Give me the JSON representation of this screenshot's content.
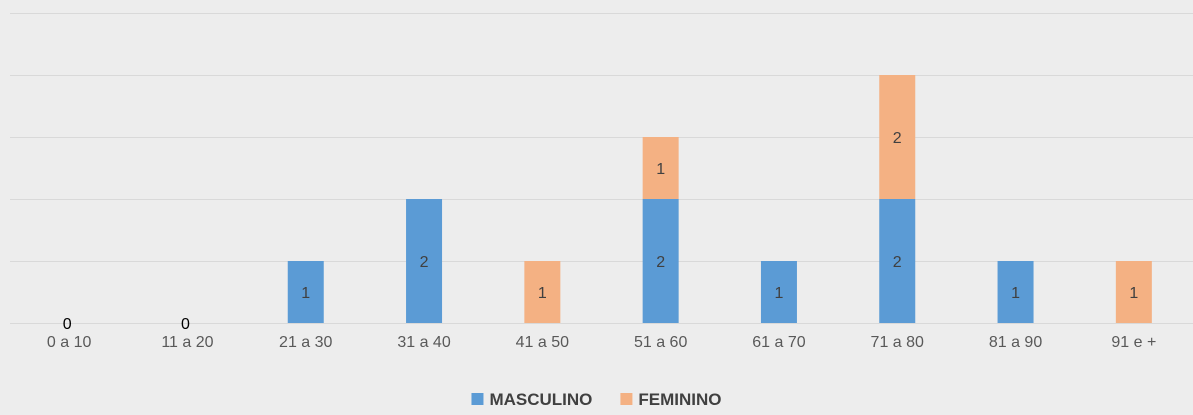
{
  "chart_data": {
    "type": "bar",
    "stacked": true,
    "categories": [
      "0 a 10",
      "11 a 20",
      "21 a 30",
      "31 a 40",
      "41 a 50",
      "51 a 60",
      "61 a 70",
      "71 a 80",
      "81 a 90",
      "91 e +"
    ],
    "series": [
      {
        "name": "MASCULINO",
        "color": "#5b9bd5",
        "values": [
          0,
          0,
          1,
          2,
          0,
          2,
          1,
          2,
          1,
          0
        ],
        "labels": [
          "0",
          "0",
          "1",
          "2",
          "",
          "2",
          "1",
          "2",
          "1",
          ""
        ]
      },
      {
        "name": "FEMININO",
        "color": "#f4b183",
        "values": [
          0,
          0,
          0,
          0,
          1,
          1,
          0,
          2,
          0,
          1
        ],
        "labels": [
          "",
          "",
          "",
          "",
          "1",
          "1",
          "",
          "2",
          "",
          "1"
        ]
      }
    ],
    "ylim": [
      0,
      5
    ],
    "y_major_step": 1,
    "y_tick_labels_shown": false,
    "grid": true,
    "legend_position": "bottom",
    "title": "",
    "xlabel": "",
    "ylabel": ""
  }
}
